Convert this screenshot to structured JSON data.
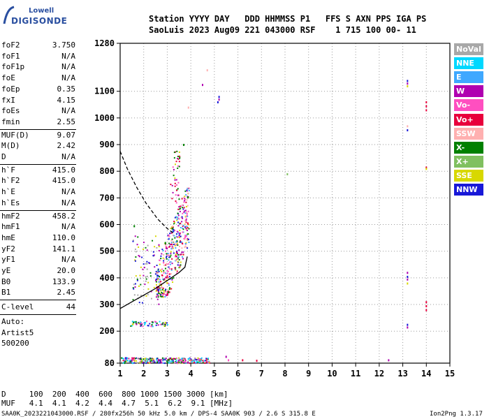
{
  "logo": {
    "top": "Lowell",
    "main": "DIGISONDE"
  },
  "header": {
    "line1": "Station YYYY DAY   DDD HHMMSS P1   FFS S AXN PPS IGA PS",
    "line2": "SaoLuis 2023 Aug09 221 043000 RSF    1 715 100 00- 11"
  },
  "params": {
    "g1": [
      {
        "k": "foF2",
        "v": "3.750"
      },
      {
        "k": "foF1",
        "v": "N/A"
      },
      {
        "k": "foF1p",
        "v": "N/A"
      },
      {
        "k": "foE",
        "v": "N/A"
      },
      {
        "k": "foEp",
        "v": "0.35"
      },
      {
        "k": "fxI",
        "v": "4.15"
      },
      {
        "k": "foEs",
        "v": "N/A"
      },
      {
        "k": "fmin",
        "v": "2.55"
      }
    ],
    "g2": [
      {
        "k": "MUF(D)",
        "v": "9.07"
      },
      {
        "k": "M(D)",
        "v": "2.42"
      },
      {
        "k": "D",
        "v": "N/A"
      }
    ],
    "g3": [
      {
        "k": "h`F",
        "v": "415.0"
      },
      {
        "k": "h`F2",
        "v": "415.0"
      },
      {
        "k": "h`E",
        "v": "N/A"
      },
      {
        "k": "h`Es",
        "v": "N/A"
      }
    ],
    "g4": [
      {
        "k": "hmF2",
        "v": "458.2"
      },
      {
        "k": "hmF1",
        "v": "N/A"
      },
      {
        "k": "hmE",
        "v": "110.0"
      },
      {
        "k": "yF2",
        "v": "141.1"
      },
      {
        "k": "yF1",
        "v": "N/A"
      },
      {
        "k": "yE",
        "v": "20.0"
      },
      {
        "k": "B0",
        "v": "133.9"
      },
      {
        "k": "B1",
        "v": "2.45"
      }
    ],
    "clevel": {
      "k": "C-level",
      "v": "44"
    },
    "auto": [
      "Auto:",
      "Artist5",
      "500200"
    ]
  },
  "legend": [
    {
      "label": "NoVal",
      "color": "#a8a8a8"
    },
    {
      "label": "NNE",
      "color": "#00d8ff"
    },
    {
      "label": "E",
      "color": "#3fa8ff"
    },
    {
      "label": "W",
      "color": "#b000b0"
    },
    {
      "label": "Vo-",
      "color": "#ff4fc0"
    },
    {
      "label": "Vo+",
      "color": "#e8003c"
    },
    {
      "label": "SSW",
      "color": "#ffb0b0"
    },
    {
      "label": "X-",
      "color": "#008000"
    },
    {
      "label": "X+",
      "color": "#80c060"
    },
    {
      "label": "SSE",
      "color": "#d8d800"
    },
    {
      "label": "NNW",
      "color": "#1818d8"
    }
  ],
  "chart_data": {
    "type": "scatter",
    "title": "",
    "xlabel": "",
    "ylabel": "",
    "xlim": [
      1,
      15
    ],
    "ylim": [
      80,
      1280
    ],
    "x_ticks": [
      "1",
      "2",
      "3",
      "4",
      "5",
      "6",
      "7",
      "8",
      "9",
      "10",
      "11",
      "12",
      "13",
      "14",
      "15"
    ],
    "y_ticks": [
      {
        "v": 80,
        "label": "80"
      },
      {
        "v": 200,
        "label": "200"
      },
      {
        "v": 300,
        "label": "300"
      },
      {
        "v": 400,
        "label": "400"
      },
      {
        "v": 500,
        "label": "500"
      },
      {
        "v": 600,
        "label": "600"
      },
      {
        "v": 700,
        "label": "700"
      },
      {
        "v": 800,
        "label": "800"
      },
      {
        "v": 900,
        "label": "900"
      },
      {
        "v": 1000,
        "label": "1000"
      },
      {
        "v": 1100,
        "label": "1100"
      },
      {
        "v": 1280,
        "label": "1280"
      }
    ],
    "grid": true,
    "legend_position": "right",
    "clusters": [
      {
        "x0": 2.5,
        "x1": 3.9,
        "y0": 330,
        "y1": 720,
        "n": 420,
        "colors": [
          "#ff4fc0",
          "#d8d800",
          "#e8003c",
          "#b000b0",
          "#1818d8",
          "#ffb0b0",
          "#3fa8ff",
          "#008000"
        ]
      },
      {
        "x0": 3.1,
        "x1": 3.5,
        "y0": 680,
        "y1": 880,
        "n": 40,
        "colors": [
          "#ff4fc0",
          "#e8003c",
          "#b000b0",
          "#008000",
          "#d8d800"
        ]
      },
      {
        "x0": 1.5,
        "x1": 2.8,
        "y0": 300,
        "y1": 560,
        "n": 90,
        "colors": [
          "#1818d8",
          "#b000b0",
          "#008000",
          "#d8d800",
          "#a8a8a8"
        ]
      },
      {
        "x0": 1.4,
        "x1": 3.0,
        "y0": 220,
        "y1": 240,
        "n": 70,
        "colors": [
          "#1818d8",
          "#b000b0",
          "#ff4fc0",
          "#008000",
          "#d8d800",
          "#00d8ff"
        ]
      },
      {
        "x0": 1.0,
        "x1": 4.8,
        "y0": 82,
        "y1": 102,
        "n": 300,
        "colors": [
          "#1818d8",
          "#b000b0",
          "#00d8ff",
          "#3fa8ff",
          "#ff4fc0",
          "#e8003c",
          "#d8d800",
          "#008000",
          "#a8a8a8"
        ]
      }
    ],
    "points": [
      {
        "x": 5.2,
        "y": 1080,
        "c": "#1818d8"
      },
      {
        "x": 5.2,
        "y": 1070,
        "c": "#b000b0"
      },
      {
        "x": 5.15,
        "y": 1060,
        "c": "#1818d8"
      },
      {
        "x": 4.5,
        "y": 1125,
        "c": "#b000b0"
      },
      {
        "x": 4.7,
        "y": 1180,
        "c": "#ffb0b0"
      },
      {
        "x": 3.9,
        "y": 1040,
        "c": "#ffb0b0"
      },
      {
        "x": 13.2,
        "y": 1140,
        "c": "#1818d8"
      },
      {
        "x": 13.2,
        "y": 1130,
        "c": "#b000b0"
      },
      {
        "x": 13.2,
        "y": 1120,
        "c": "#d8d800"
      },
      {
        "x": 13.2,
        "y": 970,
        "c": "#ffb0b0"
      },
      {
        "x": 13.2,
        "y": 955,
        "c": "#1818d8"
      },
      {
        "x": 13.2,
        "y": 420,
        "c": "#b000b0"
      },
      {
        "x": 13.2,
        "y": 405,
        "c": "#1818d8"
      },
      {
        "x": 13.2,
        "y": 395,
        "c": "#b000b0"
      },
      {
        "x": 13.2,
        "y": 380,
        "c": "#d8d800"
      },
      {
        "x": 13.2,
        "y": 225,
        "c": "#1818d8"
      },
      {
        "x": 13.2,
        "y": 215,
        "c": "#b000b0"
      },
      {
        "x": 14.0,
        "y": 1060,
        "c": "#e8003c"
      },
      {
        "x": 14.0,
        "y": 1045,
        "c": "#e8003c"
      },
      {
        "x": 14.0,
        "y": 1030,
        "c": "#e8003c"
      },
      {
        "x": 14.0,
        "y": 815,
        "c": "#e8003c"
      },
      {
        "x": 14.0,
        "y": 810,
        "c": "#d8d800"
      },
      {
        "x": 14.0,
        "y": 310,
        "c": "#e8003c"
      },
      {
        "x": 14.0,
        "y": 295,
        "c": "#e8003c"
      },
      {
        "x": 14.0,
        "y": 280,
        "c": "#e8003c"
      },
      {
        "x": 8.1,
        "y": 790,
        "c": "#80c060"
      },
      {
        "x": 5.5,
        "y": 105,
        "c": "#b000b0"
      },
      {
        "x": 5.6,
        "y": 92,
        "c": "#ff4fc0"
      },
      {
        "x": 6.2,
        "y": 92,
        "c": "#e8003c"
      },
      {
        "x": 6.8,
        "y": 90,
        "c": "#e8003c"
      },
      {
        "x": 12.4,
        "y": 92,
        "c": "#b000b0"
      },
      {
        "x": 1.6,
        "y": 595,
        "c": "#008000"
      },
      {
        "x": 3.7,
        "y": 900,
        "c": "#008000"
      },
      {
        "x": 1.25,
        "y": 100,
        "c": "#1818d8"
      }
    ],
    "trace_solid": [
      [
        1.0,
        285
      ],
      [
        1.5,
        310
      ],
      [
        2.0,
        335
      ],
      [
        2.5,
        360
      ],
      [
        3.0,
        390
      ],
      [
        3.5,
        420
      ],
      [
        3.75,
        440
      ],
      [
        3.85,
        480
      ]
    ],
    "trace_dashed": [
      [
        1.0,
        875
      ],
      [
        1.3,
        810
      ],
      [
        1.7,
        740
      ],
      [
        2.1,
        680
      ],
      [
        2.6,
        620
      ],
      [
        3.0,
        585
      ],
      [
        3.3,
        565
      ]
    ]
  },
  "bottom": {
    "d_line": "D     100  200  400  600  800 1000 1500 3000 [km]",
    "muf_line": "MUF   4.1  4.1  4.2  4.4  4.7  5.1  6.2  9.1 [MHz]"
  },
  "footer": {
    "left": "SAA0K_2023221043000.RSF / 280fx256h 50 kHz 5.0 km / DPS-4 SAA0K 903 / 2.6 S 315.8 E",
    "right": "Ion2Png 1.3.17"
  }
}
